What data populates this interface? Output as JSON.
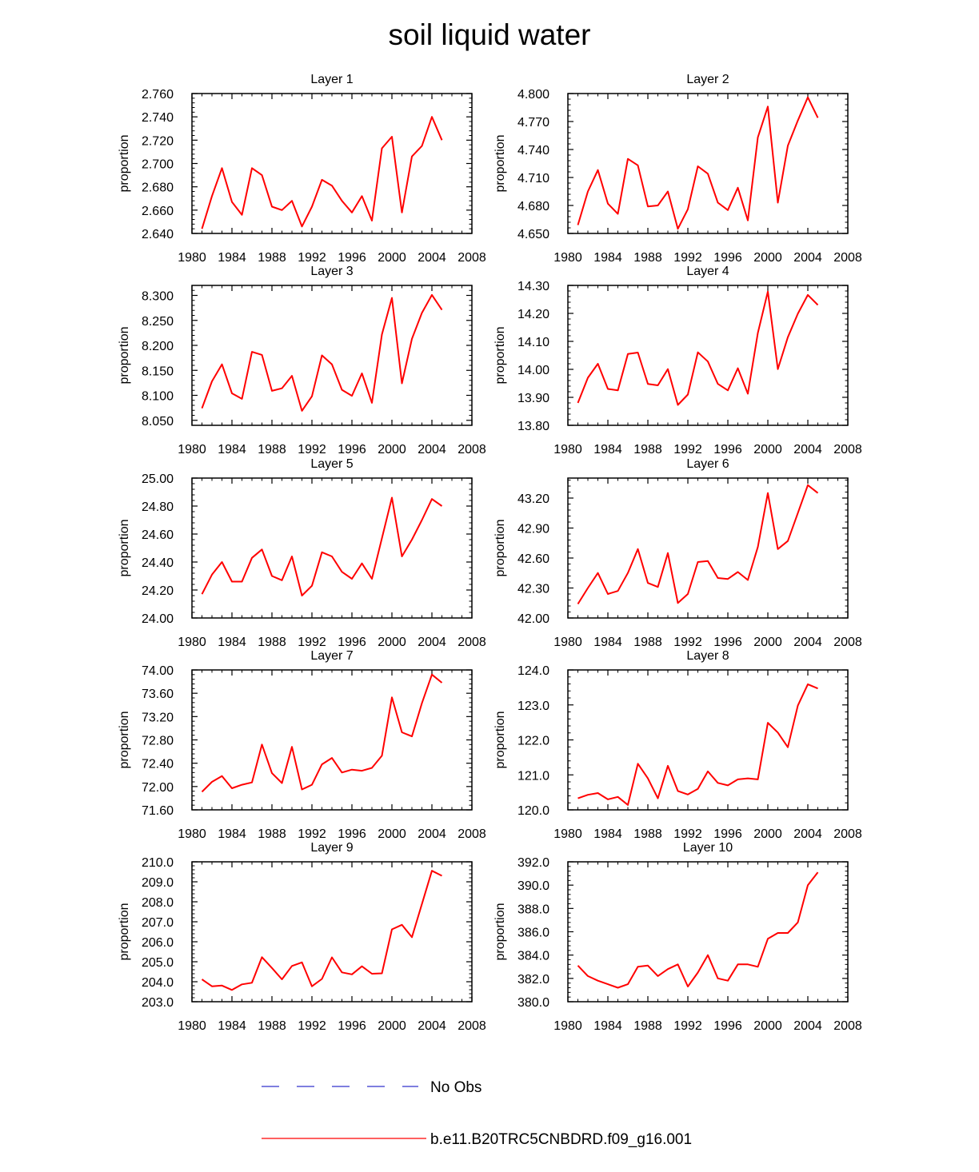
{
  "title": "soil liquid water",
  "legend": {
    "no_obs_label": "No Obs",
    "no_obs_color": "#3333cc",
    "model_label": "b.e11.B20TRC5CNBDRD.f09_g16.001",
    "model_color": "#ff0000"
  },
  "chart_data": [
    {
      "type": "line",
      "title": "Layer 1",
      "ylabel": "proportion",
      "xlim": [
        1980,
        2008
      ],
      "xticks": [
        "1980",
        "1984",
        "1988",
        "1992",
        "1996",
        "2000",
        "2004",
        "2008"
      ],
      "ylim": [
        2.64,
        2.76
      ],
      "yticks": [
        "2.640",
        "2.660",
        "2.680",
        "2.700",
        "2.720",
        "2.740",
        "2.760"
      ],
      "x": [
        1981,
        1982,
        1983,
        1984,
        1985,
        1986,
        1987,
        1988,
        1989,
        1990,
        1991,
        1992,
        1993,
        1994,
        1995,
        1996,
        1997,
        1998,
        1999,
        2000,
        2001,
        2002,
        2003,
        2004,
        2005
      ],
      "series": [
        {
          "name": "b.e11.B20TRC5CNBDRD.f09_g16.001",
          "values": [
            2.644,
            2.672,
            2.696,
            2.667,
            2.656,
            2.696,
            2.69,
            2.663,
            2.66,
            2.668,
            2.646,
            2.663,
            2.686,
            2.681,
            2.668,
            2.658,
            2.672,
            2.651,
            2.713,
            2.723,
            2.658,
            2.706,
            2.715,
            2.74,
            2.72
          ]
        }
      ]
    },
    {
      "type": "line",
      "title": "Layer 2",
      "ylabel": "proportion",
      "xlim": [
        1980,
        2008
      ],
      "xticks": [
        "1980",
        "1984",
        "1988",
        "1992",
        "1996",
        "2000",
        "2004",
        "2008"
      ],
      "ylim": [
        4.65,
        4.8
      ],
      "yticks": [
        "4.650",
        "4.680",
        "4.710",
        "4.740",
        "4.770",
        "4.800"
      ],
      "x": [
        1981,
        1982,
        1983,
        1984,
        1985,
        1986,
        1987,
        1988,
        1989,
        1990,
        1991,
        1992,
        1993,
        1994,
        1995,
        1996,
        1997,
        1998,
        1999,
        2000,
        2001,
        2002,
        2003,
        2004,
        2005
      ],
      "series": [
        {
          "name": "b.e11.B20TRC5CNBDRD.f09_g16.001",
          "values": [
            4.659,
            4.695,
            4.718,
            4.682,
            4.671,
            4.73,
            4.723,
            4.679,
            4.68,
            4.695,
            4.655,
            4.676,
            4.722,
            4.714,
            4.683,
            4.675,
            4.699,
            4.664,
            4.753,
            4.786,
            4.683,
            4.744,
            4.771,
            4.796,
            4.774
          ]
        }
      ]
    },
    {
      "type": "line",
      "title": "Layer 3",
      "ylabel": "proportion",
      "xlim": [
        1980,
        2008
      ],
      "xticks": [
        "1980",
        "1984",
        "1988",
        "1992",
        "1996",
        "2000",
        "2004",
        "2008"
      ],
      "ylim": [
        8.04,
        8.32
      ],
      "yticks": [
        "8.050",
        "8.100",
        "8.150",
        "8.200",
        "8.250",
        "8.300"
      ],
      "x": [
        1981,
        1982,
        1983,
        1984,
        1985,
        1986,
        1987,
        1988,
        1989,
        1990,
        1991,
        1992,
        1993,
        1994,
        1995,
        1996,
        1997,
        1998,
        1999,
        2000,
        2001,
        2002,
        2003,
        2004,
        2005
      ],
      "series": [
        {
          "name": "b.e11.B20TRC5CNBDRD.f09_g16.001",
          "values": [
            8.074,
            8.128,
            8.162,
            8.104,
            8.093,
            8.187,
            8.181,
            8.109,
            8.114,
            8.139,
            8.069,
            8.098,
            8.18,
            8.162,
            8.111,
            8.099,
            8.144,
            8.085,
            8.222,
            8.295,
            8.124,
            8.213,
            8.265,
            8.301,
            8.271
          ]
        }
      ]
    },
    {
      "type": "line",
      "title": "Layer 4",
      "ylabel": "proportion",
      "xlim": [
        1980,
        2008
      ],
      "xticks": [
        "1980",
        "1984",
        "1988",
        "1992",
        "1996",
        "2000",
        "2004",
        "2008"
      ],
      "ylim": [
        13.8,
        14.3
      ],
      "yticks": [
        "13.80",
        "13.90",
        "14.00",
        "14.10",
        "14.20",
        "14.30"
      ],
      "x": [
        1981,
        1982,
        1983,
        1984,
        1985,
        1986,
        1987,
        1988,
        1989,
        1990,
        1991,
        1992,
        1993,
        1994,
        1995,
        1996,
        1997,
        1998,
        1999,
        2000,
        2001,
        2002,
        2003,
        2004,
        2005
      ],
      "series": [
        {
          "name": "b.e11.B20TRC5CNBDRD.f09_g16.001",
          "values": [
            13.88,
            13.97,
            14.02,
            13.93,
            13.925,
            14.055,
            14.06,
            13.948,
            13.943,
            14.001,
            13.873,
            13.91,
            14.061,
            14.028,
            13.948,
            13.925,
            14.004,
            13.913,
            14.13,
            14.278,
            14.001,
            14.115,
            14.199,
            14.266,
            14.23
          ]
        }
      ]
    },
    {
      "type": "line",
      "title": "Layer 5",
      "ylabel": "proportion",
      "xlim": [
        1980,
        2008
      ],
      "xticks": [
        "1980",
        "1984",
        "1988",
        "1992",
        "1996",
        "2000",
        "2004",
        "2008"
      ],
      "ylim": [
        24.0,
        25.0
      ],
      "yticks": [
        "24.00",
        "24.20",
        "24.40",
        "24.60",
        "24.80",
        "25.00"
      ],
      "x": [
        1981,
        1982,
        1983,
        1984,
        1985,
        1986,
        1987,
        1988,
        1989,
        1990,
        1991,
        1992,
        1993,
        1994,
        1995,
        1996,
        1997,
        1998,
        1999,
        2000,
        2001,
        2002,
        2003,
        2004,
        2005
      ],
      "series": [
        {
          "name": "b.e11.B20TRC5CNBDRD.f09_g16.001",
          "values": [
            24.17,
            24.31,
            24.4,
            24.26,
            24.26,
            24.43,
            24.49,
            24.3,
            24.27,
            24.44,
            24.16,
            24.23,
            24.47,
            24.44,
            24.33,
            24.28,
            24.39,
            24.28,
            24.57,
            24.86,
            24.44,
            24.56,
            24.7,
            24.85,
            24.8
          ]
        }
      ]
    },
    {
      "type": "line",
      "title": "Layer 6",
      "ylabel": "proportion",
      "xlim": [
        1980,
        2008
      ],
      "xticks": [
        "1980",
        "1984",
        "1988",
        "1992",
        "1996",
        "2000",
        "2004",
        "2008"
      ],
      "ylim": [
        42.0,
        43.4
      ],
      "yticks": [
        "42.00",
        "42.30",
        "42.60",
        "42.90",
        "43.20"
      ],
      "x": [
        1981,
        1982,
        1983,
        1984,
        1985,
        1986,
        1987,
        1988,
        1989,
        1990,
        1991,
        1992,
        1993,
        1994,
        1995,
        1996,
        1997,
        1998,
        1999,
        2000,
        2001,
        2002,
        2003,
        2004,
        2005
      ],
      "series": [
        {
          "name": "b.e11.B20TRC5CNBDRD.f09_g16.001",
          "values": [
            42.14,
            42.3,
            42.45,
            42.24,
            42.27,
            42.45,
            42.69,
            42.35,
            42.31,
            42.65,
            42.15,
            42.24,
            42.56,
            42.57,
            42.4,
            42.39,
            42.46,
            42.38,
            42.71,
            43.25,
            42.69,
            42.77,
            43.05,
            43.33,
            43.25
          ]
        }
      ]
    },
    {
      "type": "line",
      "title": "Layer 7",
      "ylabel": "proportion",
      "xlim": [
        1980,
        2008
      ],
      "xticks": [
        "1980",
        "1984",
        "1988",
        "1992",
        "1996",
        "2000",
        "2004",
        "2008"
      ],
      "ylim": [
        71.6,
        74.0
      ],
      "yticks": [
        "71.60",
        "72.00",
        "72.40",
        "72.80",
        "73.20",
        "73.60",
        "74.00"
      ],
      "x": [
        1981,
        1982,
        1983,
        1984,
        1985,
        1986,
        1987,
        1988,
        1989,
        1990,
        1991,
        1992,
        1993,
        1994,
        1995,
        1996,
        1997,
        1998,
        1999,
        2000,
        2001,
        2002,
        2003,
        2004,
        2005
      ],
      "series": [
        {
          "name": "b.e11.B20TRC5CNBDRD.f09_g16.001",
          "values": [
            71.91,
            72.08,
            72.18,
            71.97,
            72.03,
            72.07,
            72.72,
            72.23,
            72.06,
            72.68,
            71.95,
            72.03,
            72.38,
            72.49,
            72.24,
            72.29,
            72.27,
            72.32,
            72.53,
            73.53,
            72.93,
            72.86,
            73.43,
            73.92,
            73.78
          ]
        }
      ]
    },
    {
      "type": "line",
      "title": "Layer 8",
      "ylabel": "proportion",
      "xlim": [
        1980,
        2008
      ],
      "xticks": [
        "1980",
        "1984",
        "1988",
        "1992",
        "1996",
        "2000",
        "2004",
        "2008"
      ],
      "ylim": [
        120.0,
        124.0
      ],
      "yticks": [
        "120.0",
        "121.0",
        "122.0",
        "123.0",
        "124.0"
      ],
      "x": [
        1981,
        1982,
        1983,
        1984,
        1985,
        1986,
        1987,
        1988,
        1989,
        1990,
        1991,
        1992,
        1993,
        1994,
        1995,
        1996,
        1997,
        1998,
        1999,
        2000,
        2001,
        2002,
        2003,
        2004,
        2005
      ],
      "series": [
        {
          "name": "b.e11.B20TRC5CNBDRD.f09_g16.001",
          "values": [
            120.33,
            120.43,
            120.48,
            120.3,
            120.37,
            120.14,
            121.32,
            120.9,
            120.33,
            121.26,
            120.54,
            120.44,
            120.6,
            121.1,
            120.77,
            120.7,
            120.87,
            120.9,
            120.87,
            122.49,
            122.21,
            121.79,
            122.98,
            123.59,
            123.47
          ]
        }
      ]
    },
    {
      "type": "line",
      "title": "Layer 9",
      "ylabel": "proportion",
      "xlim": [
        1980,
        2008
      ],
      "xticks": [
        "1980",
        "1984",
        "1988",
        "1992",
        "1996",
        "2000",
        "2004",
        "2008"
      ],
      "ylim": [
        203.0,
        210.0
      ],
      "yticks": [
        "203.0",
        "204.0",
        "205.0",
        "206.0",
        "207.0",
        "208.0",
        "209.0",
        "210.0"
      ],
      "x": [
        1981,
        1982,
        1983,
        1984,
        1985,
        1986,
        1987,
        1988,
        1989,
        1990,
        1991,
        1992,
        1993,
        1994,
        1995,
        1996,
        1997,
        1998,
        1999,
        2000,
        2001,
        2002,
        2003,
        2004,
        2005
      ],
      "series": [
        {
          "name": "b.e11.B20TRC5CNBDRD.f09_g16.001",
          "values": [
            204.12,
            203.77,
            203.81,
            203.59,
            203.87,
            203.95,
            205.23,
            204.69,
            204.12,
            204.79,
            204.97,
            203.77,
            204.14,
            205.22,
            204.47,
            204.37,
            204.77,
            204.4,
            204.42,
            206.62,
            206.85,
            206.23,
            207.89,
            209.55,
            209.3
          ]
        }
      ]
    },
    {
      "type": "line",
      "title": "Layer 10",
      "ylabel": "proportion",
      "xlim": [
        1980,
        2008
      ],
      "xticks": [
        "1980",
        "1984",
        "1988",
        "1992",
        "1996",
        "2000",
        "2004",
        "2008"
      ],
      "ylim": [
        380.0,
        392.0
      ],
      "yticks": [
        "380.0",
        "382.0",
        "384.0",
        "386.0",
        "388.0",
        "390.0",
        "392.0"
      ],
      "x": [
        1981,
        1982,
        1983,
        1984,
        1985,
        1986,
        1987,
        1988,
        1989,
        1990,
        1991,
        1992,
        1993,
        1994,
        1995,
        1996,
        1997,
        1998,
        1999,
        2000,
        2001,
        2002,
        2003,
        2004,
        2005
      ],
      "series": [
        {
          "name": "b.e11.B20TRC5CNBDRD.f09_g16.001",
          "values": [
            383.1,
            382.2,
            381.8,
            381.5,
            381.2,
            381.5,
            383.0,
            383.1,
            382.2,
            382.8,
            383.2,
            381.3,
            382.5,
            384.0,
            382.0,
            381.8,
            383.2,
            383.2,
            383.0,
            385.4,
            385.9,
            385.9,
            386.8,
            390.0,
            391.1
          ]
        }
      ]
    }
  ]
}
